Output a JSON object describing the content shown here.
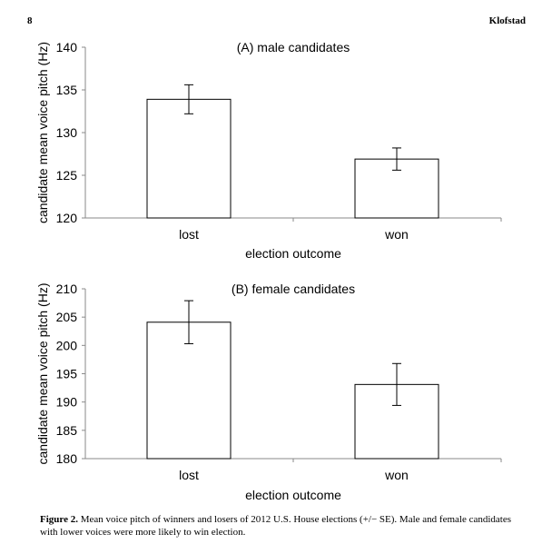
{
  "header": {
    "page_number": "8",
    "running_head": "Klofstad"
  },
  "chart_data": [
    {
      "type": "bar",
      "title": "(A) male candidates",
      "xlabel": "election outcome",
      "ylabel": "candidate mean voice pitch (Hz)",
      "categories": [
        "lost",
        "won"
      ],
      "values": [
        133.9,
        126.9
      ],
      "error": [
        1.7,
        1.3
      ],
      "ylim": [
        120,
        140
      ],
      "yticks": [
        120,
        125,
        130,
        135,
        140
      ],
      "grid": false,
      "bar_fill": "#ffffff",
      "bar_stroke": "#000000"
    },
    {
      "type": "bar",
      "title": "(B) female candidates",
      "xlabel": "election outcome",
      "ylabel": "candidate mean voice pitch (Hz)",
      "categories": [
        "lost",
        "won"
      ],
      "values": [
        204.1,
        193.1
      ],
      "error": [
        3.8,
        3.7
      ],
      "ylim": [
        180,
        210
      ],
      "yticks": [
        180,
        185,
        190,
        195,
        200,
        205,
        210
      ],
      "grid": false,
      "bar_fill": "#ffffff",
      "bar_stroke": "#000000"
    }
  ],
  "caption": {
    "label": "Figure 2.",
    "text": " Mean voice pitch of winners and losers of 2012 U.S. House elections (+/− SE). Male and female candidates with lower voices were more likely to win election."
  }
}
